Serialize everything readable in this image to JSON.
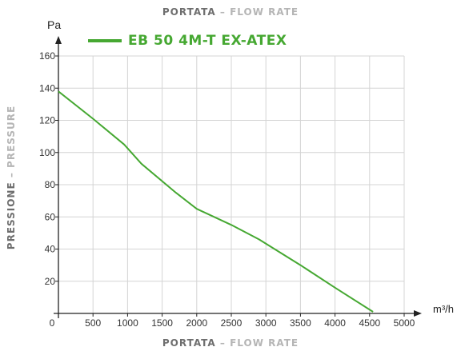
{
  "chart_data": {
    "type": "line",
    "top_title": {
      "strong": "PORTATA",
      "light": "– FLOW RATE"
    },
    "bottom_title": {
      "strong": "PORTATA",
      "light": "– FLOW RATE"
    },
    "side_title": {
      "strong": "PRESSIONE",
      "light": "– PRESSURE"
    },
    "ylabel_unit": "Pa",
    "xlabel_unit": "m³/h",
    "xlim": [
      0,
      5000
    ],
    "ylim": [
      0,
      160
    ],
    "x_ticks": [
      "0",
      "500",
      "1000",
      "1500",
      "2000",
      "2500",
      "3000",
      "3500",
      "4000",
      "4500",
      "5000"
    ],
    "y_ticks": [
      "20",
      "40",
      "60",
      "80",
      "100",
      "120",
      "140",
      "160"
    ],
    "grid": true,
    "legend_position": "top-left",
    "series": [
      {
        "name": "EB 50 4M-T EX-ATEX",
        "color": "#46a832",
        "x": [
          0,
          500,
          950,
          1200,
          1700,
          2000,
          2500,
          2900,
          3500,
          4000,
          4550
        ],
        "y": [
          138,
          121,
          105,
          93,
          75,
          65,
          55,
          46,
          30,
          16,
          1
        ]
      }
    ]
  }
}
